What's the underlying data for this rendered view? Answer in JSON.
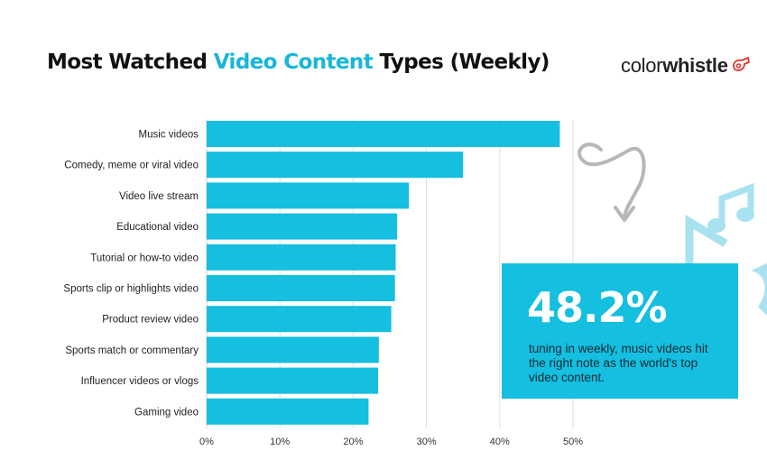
{
  "header": {
    "title_part1": "Most Watched ",
    "title_highlight": "Video Content",
    "title_part2": " Types (Weekly)"
  },
  "logo": {
    "part1": "color",
    "part2": "whistle"
  },
  "colors": {
    "bar": "#14bfe0",
    "highlight": "#19b6d9",
    "box": "#14bfe0",
    "grid": "#dddddd",
    "notes": "#a8e2f0"
  },
  "chart_data": {
    "type": "bar",
    "orientation": "horizontal",
    "categories": [
      "Music videos",
      "Comedy, meme or viral video",
      "Video live stream",
      "Educational video",
      "Tutorial or how-to video",
      "Sports clip or highlights video",
      "Product review video",
      "Sports match or commentary",
      "Influencer videos or vlogs",
      "Gaming video"
    ],
    "values": [
      48.2,
      35.0,
      27.6,
      26.0,
      25.8,
      25.7,
      25.2,
      23.5,
      23.4,
      22.1
    ],
    "xlim": [
      0,
      50
    ],
    "ticks": [
      "0%",
      "10%",
      "20%",
      "30%",
      "40%",
      "50%"
    ],
    "grid": true,
    "legend": "none"
  },
  "callout": {
    "value": "48.2%",
    "caption": "tuning in weekly, music videos hit the right note as the world's top video content."
  }
}
